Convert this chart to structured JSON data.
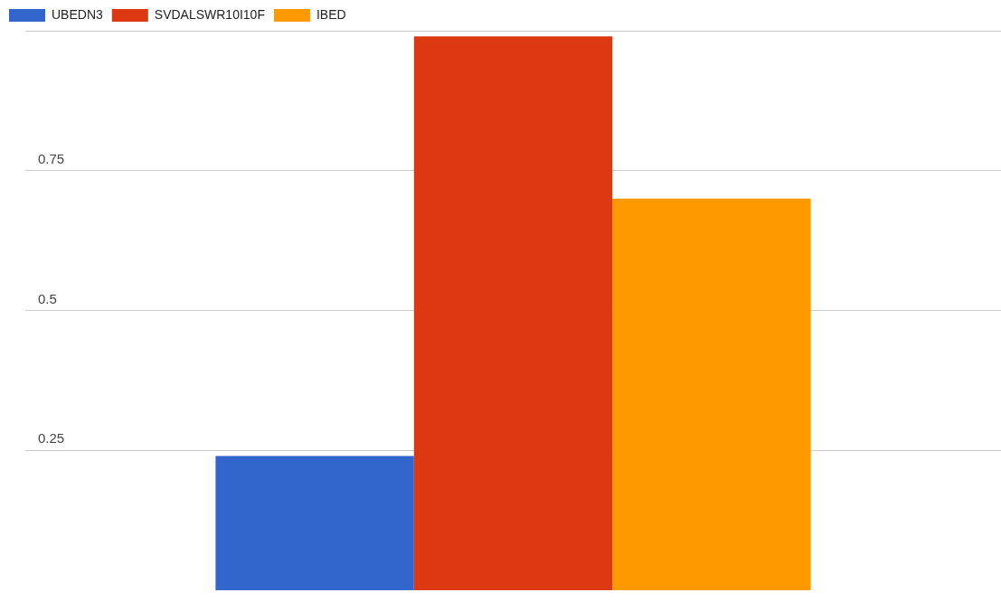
{
  "chart_data": {
    "type": "bar",
    "categories": [
      null
    ],
    "series": [
      {
        "name": "UBEDN3",
        "color": "#3366cc",
        "values": [
          0.24
        ]
      },
      {
        "name": "SVDALSWR10I10F",
        "color": "#dc3912",
        "values": [
          0.99
        ]
      },
      {
        "name": "IBED",
        "color": "#ff9900",
        "values": [
          0.7
        ]
      }
    ],
    "ylim": [
      0,
      1
    ],
    "yticks": [
      0.25,
      0.5,
      0.75,
      {
        "value": 1,
        "label": null
      }
    ],
    "grid": "y",
    "legend": "top left"
  }
}
